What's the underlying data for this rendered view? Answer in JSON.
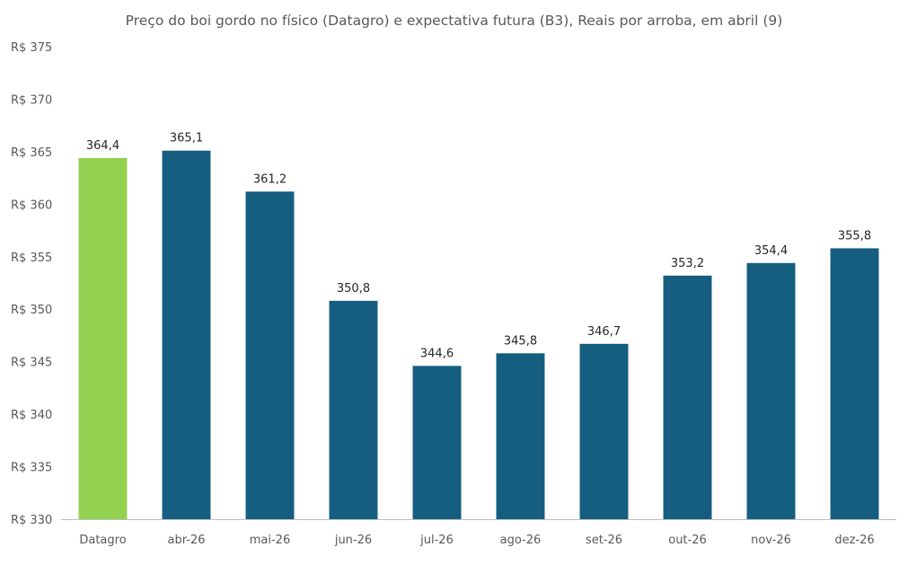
{
  "chart_data": {
    "type": "bar",
    "title": "Preço do boi gordo no físico (Datagro)  e expectativa futura (B3), Reais por arroba, em abril (9)",
    "xlabel": "",
    "ylabel": "",
    "ylim": [
      330,
      375
    ],
    "ytick_step": 5,
    "ytick_labels": [
      "R$ 330",
      "R$ 335",
      "R$ 340",
      "R$ 345",
      "R$ 350",
      "R$ 355",
      "R$ 360",
      "R$ 365",
      "R$ 370",
      "R$ 375"
    ],
    "grid": false,
    "categories": [
      "Datagro",
      "abr-26",
      "mai-26",
      "jun-26",
      "jul-26",
      "ago-26",
      "set-26",
      "out-26",
      "nov-26",
      "dez-26"
    ],
    "values": [
      364.4,
      365.1,
      361.2,
      350.8,
      344.6,
      345.8,
      346.7,
      353.2,
      354.4,
      355.8
    ],
    "value_labels": [
      "364,4",
      "365,1",
      "361,2",
      "350,8",
      "344,6",
      "345,8",
      "346,7",
      "353,2",
      "354,4",
      "355,8"
    ],
    "bar_colors": [
      "#92d050",
      "#165e80",
      "#165e80",
      "#165e80",
      "#165e80",
      "#165e80",
      "#165e80",
      "#165e80",
      "#165e80",
      "#165e80"
    ],
    "axis_color": "#bfbfbf"
  }
}
